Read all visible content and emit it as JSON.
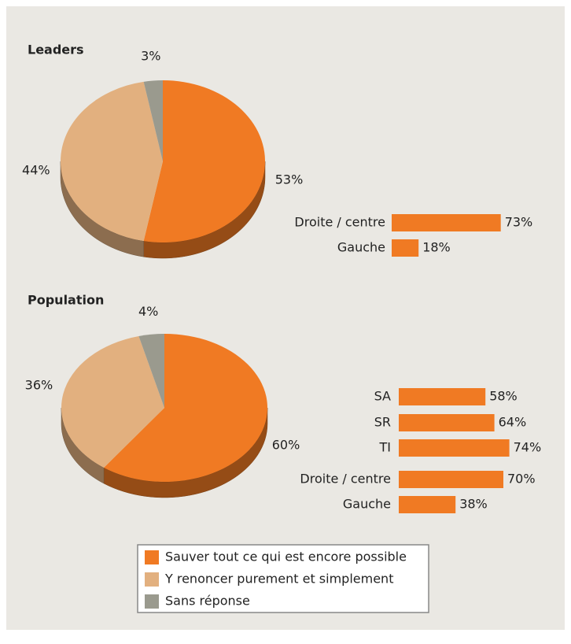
{
  "chart_data": [
    {
      "type": "pie",
      "title": "Leaders",
      "categories": [
        "Sauver tout ce qui est encore possible",
        "Y renoncer purement et simplement",
        "Sans réponse"
      ],
      "values": [
        53,
        44,
        3
      ],
      "value_labels": [
        "53%",
        "44%",
        "3%"
      ],
      "colors": [
        "#f07a23",
        "#e2b07f",
        "#9a9a8e"
      ]
    },
    {
      "type": "bar",
      "categories": [
        "Droite / centre",
        "Gauche"
      ],
      "values": [
        73,
        18
      ],
      "value_labels": [
        "73%",
        "18%"
      ],
      "color": "#f07a23"
    },
    {
      "type": "pie",
      "title": "Population",
      "values": [
        60,
        36,
        4
      ],
      "value_labels": [
        "60%",
        "36%",
        "4%"
      ],
      "colors": [
        "#f07a23",
        "#e2b07f",
        "#9a9a8e"
      ]
    },
    {
      "type": "bar",
      "categories": [
        "SA",
        "SR",
        "TI",
        "Droite / centre",
        "Gauche"
      ],
      "values": [
        58,
        64,
        74,
        70,
        38
      ],
      "value_labels": [
        "58%",
        "64%",
        "74%",
        "70%",
        "38%"
      ],
      "color": "#f07a23"
    }
  ]
}
